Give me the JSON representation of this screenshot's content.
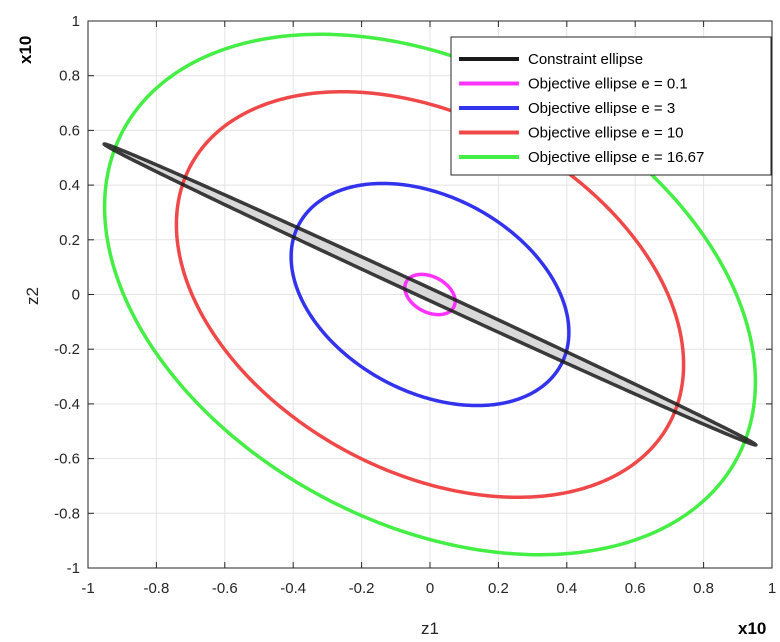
{
  "chart_data": {
    "type": "line",
    "title": "",
    "xlabel": "z1",
    "ylabel": "z2",
    "x_exponent_label": "x10",
    "y_exponent_label": "x10",
    "xlim": [
      -1,
      1
    ],
    "ylim": [
      -1,
      1
    ],
    "xticks": [
      -1,
      -0.8,
      -0.6,
      -0.4,
      -0.2,
      0,
      0.2,
      0.4,
      0.6,
      0.8,
      1
    ],
    "yticks": [
      -1,
      -0.8,
      -0.6,
      -0.4,
      -0.2,
      0,
      0.2,
      0.4,
      0.6,
      0.8,
      1
    ],
    "xtick_labels": [
      "-1",
      "-0.8",
      "-0.6",
      "-0.4",
      "-0.2",
      "0",
      "0.2",
      "0.4",
      "0.6",
      "0.8",
      "1"
    ],
    "ytick_labels": [
      "-1",
      "-0.8",
      "-0.6",
      "-0.4",
      "-0.2",
      "0",
      "0.2",
      "0.4",
      "0.6",
      "0.8",
      "1"
    ],
    "grid": true,
    "legend_position": "top-right",
    "fill_color": "#d9d9d9",
    "series": [
      {
        "name": "Constraint ellipse",
        "color": "#1a1a1a",
        "center": [
          0,
          0
        ],
        "semi_major": 1.1,
        "semi_minor": 0.02,
        "angle_deg": -30,
        "filled": true
      },
      {
        "name": "Objective ellipse e = 0.1",
        "color": "#ff33ff",
        "center": [
          0,
          0
        ],
        "semi_major": 0.085,
        "semi_minor": 0.06,
        "angle_deg": -45,
        "filled": false
      },
      {
        "name": "Objective ellipse e = 3",
        "color": "#3333ee",
        "center": [
          0,
          0
        ],
        "semi_major": 0.47,
        "semi_minor": 0.33,
        "angle_deg": -45,
        "filled": false
      },
      {
        "name": "Objective ellipse e = 10",
        "color": "#f04848",
        "center": [
          0,
          0
        ],
        "semi_major": 0.86,
        "semi_minor": 0.6,
        "angle_deg": -45,
        "filled": false
      },
      {
        "name": "Objective ellipse e = 16.67",
        "color": "#44ee44",
        "center": [
          0,
          0
        ],
        "semi_major": 1.1,
        "semi_minor": 0.775,
        "angle_deg": -45,
        "filled": false
      }
    ]
  }
}
